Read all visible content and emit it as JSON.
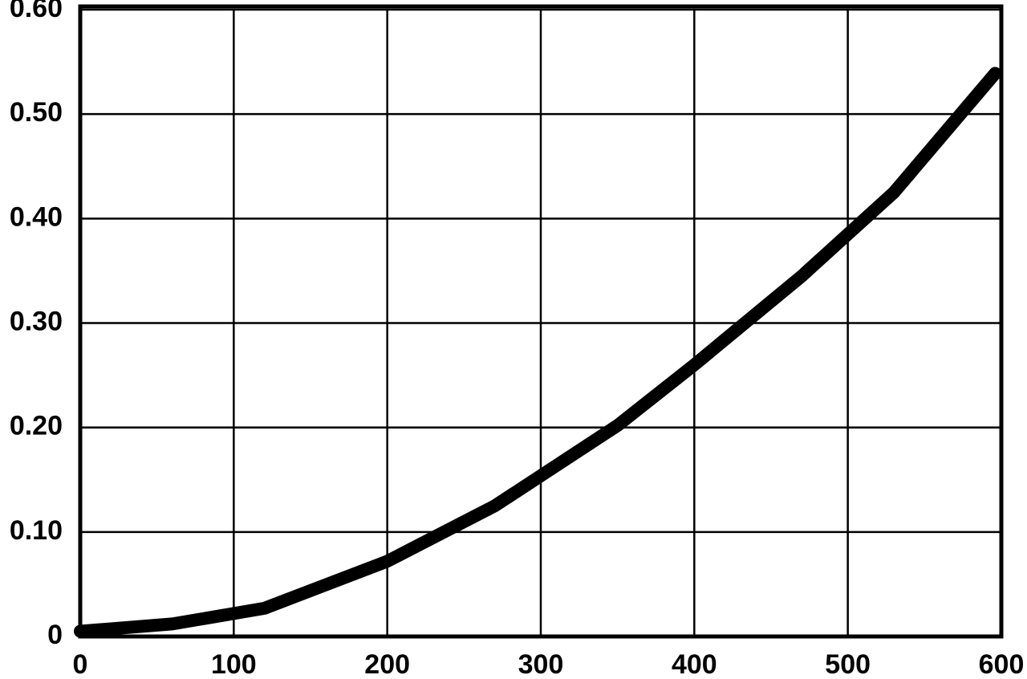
{
  "chart_data": {
    "type": "line",
    "x": [
      0,
      60,
      120,
      200,
      270,
      350,
      400,
      470,
      530,
      596
    ],
    "values": [
      0.005,
      0.012,
      0.027,
      0.072,
      0.125,
      0.202,
      0.26,
      0.345,
      0.425,
      0.539
    ],
    "color": "#000000",
    "xlim": [
      0,
      600
    ],
    "xticks": [
      0,
      100,
      200,
      300,
      400,
      500,
      600
    ],
    "ylim": [
      0,
      0.6
    ],
    "yticks": [
      0,
      {
        "value": 0.1,
        "label": "0.10"
      },
      {
        "value": 0.2,
        "label": "0.20"
      },
      {
        "value": 0.3,
        "label": "0.30"
      },
      {
        "value": 0.4,
        "label": "0.40"
      },
      {
        "value": 0.5,
        "label": "0.50"
      },
      {
        "value": 0.6,
        "label": "0.60"
      }
    ],
    "grid": true
  }
}
